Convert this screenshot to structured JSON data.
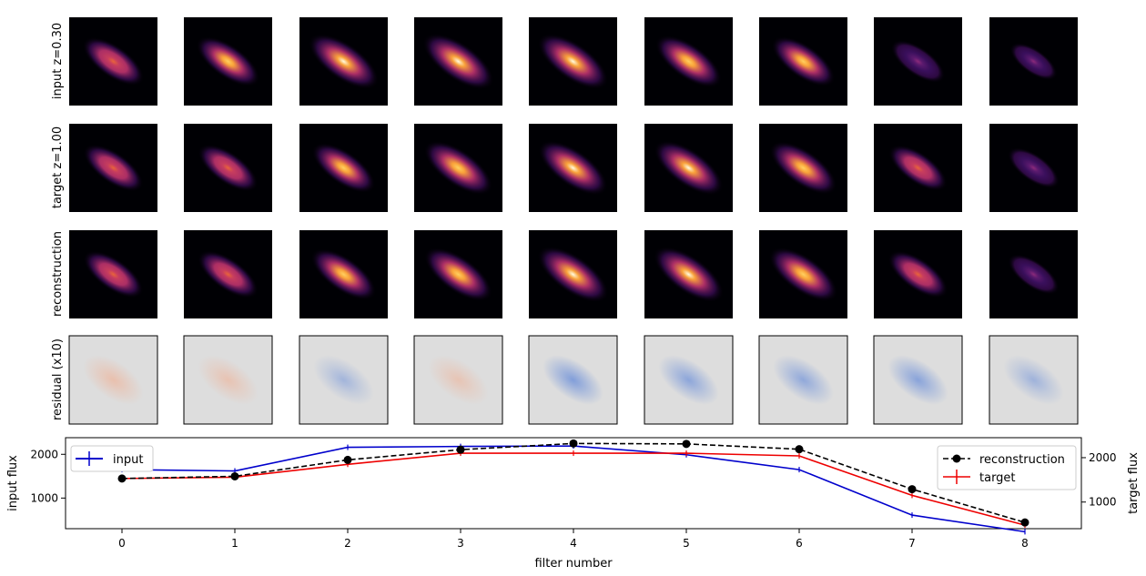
{
  "image_grid": {
    "row_labels": [
      "input z=0.30",
      "target z=1.00",
      "reconstruction",
      "residual (x10)"
    ],
    "columns": 9,
    "brightness": {
      "input": [
        0.55,
        0.62,
        0.85,
        0.88,
        0.86,
        0.72,
        0.62,
        0.3,
        0.07
      ],
      "target": [
        0.5,
        0.5,
        0.62,
        0.8,
        0.82,
        0.82,
        0.75,
        0.45,
        0.22
      ],
      "reconstruction": [
        0.5,
        0.52,
        0.68,
        0.78,
        0.88,
        0.85,
        0.8,
        0.5,
        0.2
      ]
    },
    "residual_tone": [
      0.35,
      0.25,
      -0.1,
      0.2,
      -0.55,
      -0.4,
      -0.35,
      -0.45,
      -0.15
    ]
  },
  "chart_data": {
    "type": "line",
    "x": [
      0,
      1,
      2,
      3,
      4,
      5,
      6,
      7,
      8
    ],
    "xlabel": "filter number",
    "xlim": [
      -0.5,
      8.5
    ],
    "x_ticks": [
      0,
      1,
      2,
      3,
      4,
      5,
      6,
      7,
      8
    ],
    "left_axis": {
      "label": "input flux",
      "ylim": [
        300,
        2380
      ],
      "ticks": [
        1000,
        2000
      ],
      "series": [
        {
          "name": "input",
          "color": "#0000cc",
          "style": "solid",
          "values": [
            1650,
            1620,
            2160,
            2180,
            2190,
            1990,
            1650,
            610,
            230
          ]
        }
      ]
    },
    "right_axis": {
      "label": "target flux",
      "ylim": [
        400,
        2450
      ],
      "ticks": [
        1000,
        2000
      ],
      "series": [
        {
          "name": "reconstruction",
          "color": "#000000",
          "style": "dashed",
          "marker": "o",
          "values": [
            1530,
            1580,
            1950,
            2180,
            2320,
            2310,
            2190,
            1290,
            540
          ]
        },
        {
          "name": "target",
          "color": "#ee0000",
          "style": "solid",
          "values": [
            1530,
            1560,
            1850,
            2100,
            2100,
            2100,
            2040,
            1150,
            480
          ]
        }
      ]
    },
    "legends": {
      "left_position": "upper-left",
      "right_position": "upper-right"
    }
  }
}
